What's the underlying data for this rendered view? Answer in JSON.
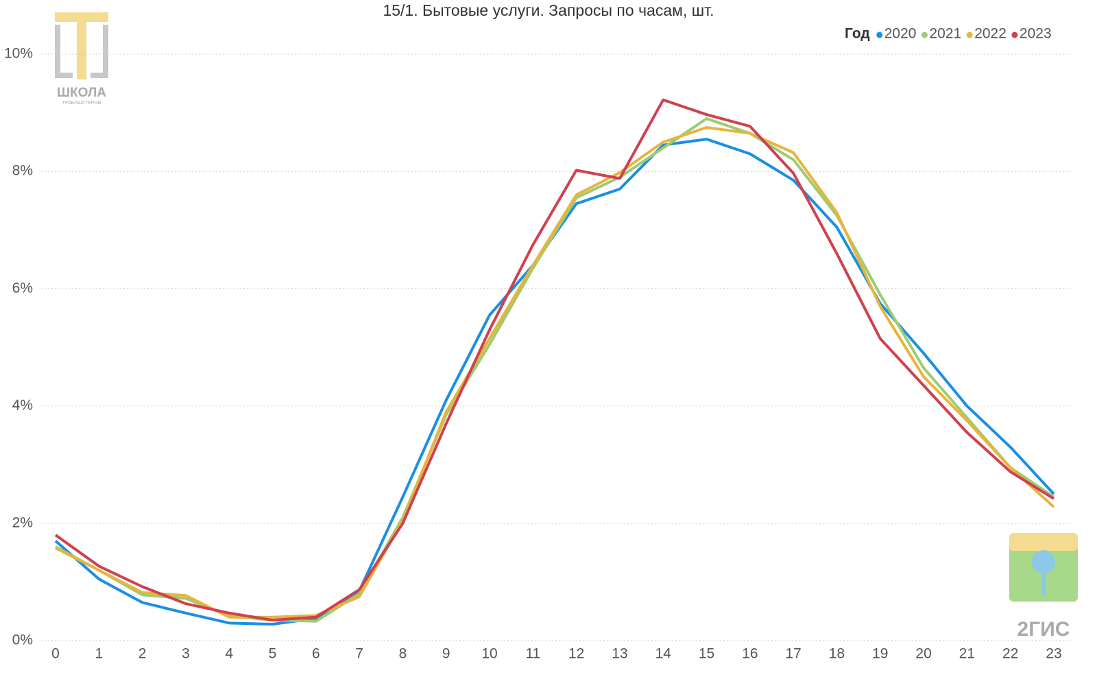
{
  "chart_data": {
    "type": "line",
    "title": "15/1. Бытовые услуги. Запросы по часам, шт.",
    "legend_title": "Год",
    "legend_position": "top-right",
    "grid": true,
    "x": [
      0,
      1,
      2,
      3,
      4,
      5,
      6,
      7,
      8,
      9,
      10,
      11,
      12,
      13,
      14,
      15,
      16,
      17,
      18,
      19,
      20,
      21,
      22,
      23
    ],
    "xlim": [
      0,
      23
    ],
    "xticks": [
      0,
      1,
      2,
      3,
      4,
      5,
      6,
      7,
      8,
      9,
      10,
      11,
      12,
      13,
      14,
      15,
      16,
      17,
      18,
      19,
      20,
      21,
      22,
      23
    ],
    "ylim": [
      0,
      10
    ],
    "yticks": [
      {
        "value": 0,
        "label": "0%"
      },
      {
        "value": 2,
        "label": "2%"
      },
      {
        "value": 4,
        "label": "4%"
      },
      {
        "value": 6,
        "label": "6%"
      },
      {
        "value": 8,
        "label": "8%"
      },
      {
        "value": 10,
        "label": "10%"
      }
    ],
    "series": [
      {
        "name": "2020",
        "color": "#1a8fe3",
        "values": [
          1.7,
          1.05,
          0.65,
          0.47,
          0.3,
          0.28,
          0.38,
          0.85,
          2.45,
          4.1,
          5.55,
          6.4,
          7.45,
          7.7,
          8.45,
          8.55,
          8.3,
          7.85,
          7.05,
          5.75,
          4.9,
          4.0,
          3.3,
          2.5
        ]
      },
      {
        "name": "2021",
        "color": "#9ccc74",
        "values": [
          1.6,
          1.2,
          0.78,
          0.72,
          0.42,
          0.35,
          0.33,
          0.8,
          2.1,
          3.85,
          5.05,
          6.35,
          7.55,
          7.9,
          8.4,
          8.9,
          8.65,
          8.2,
          7.25,
          5.9,
          4.65,
          3.8,
          2.95,
          2.45
        ]
      },
      {
        "name": "2022",
        "color": "#e8b43c",
        "values": [
          1.58,
          1.2,
          0.82,
          0.77,
          0.4,
          0.4,
          0.43,
          0.75,
          2.05,
          3.9,
          5.15,
          6.4,
          7.6,
          7.98,
          8.5,
          8.75,
          8.65,
          8.32,
          7.3,
          5.7,
          4.5,
          3.75,
          2.95,
          2.28
        ]
      },
      {
        "name": "2023",
        "color": "#d0404f",
        "values": [
          1.8,
          1.27,
          0.92,
          0.63,
          0.47,
          0.35,
          0.4,
          0.87,
          2.0,
          3.7,
          5.3,
          6.75,
          8.02,
          7.88,
          9.22,
          8.97,
          8.77,
          7.97,
          6.6,
          5.15,
          4.35,
          3.55,
          2.88,
          2.42
        ]
      }
    ]
  },
  "logos": {
    "left": "ШКОЛА",
    "left_sub": "ТРАБЛШУТЕРОВ",
    "right": "2ГИС"
  }
}
